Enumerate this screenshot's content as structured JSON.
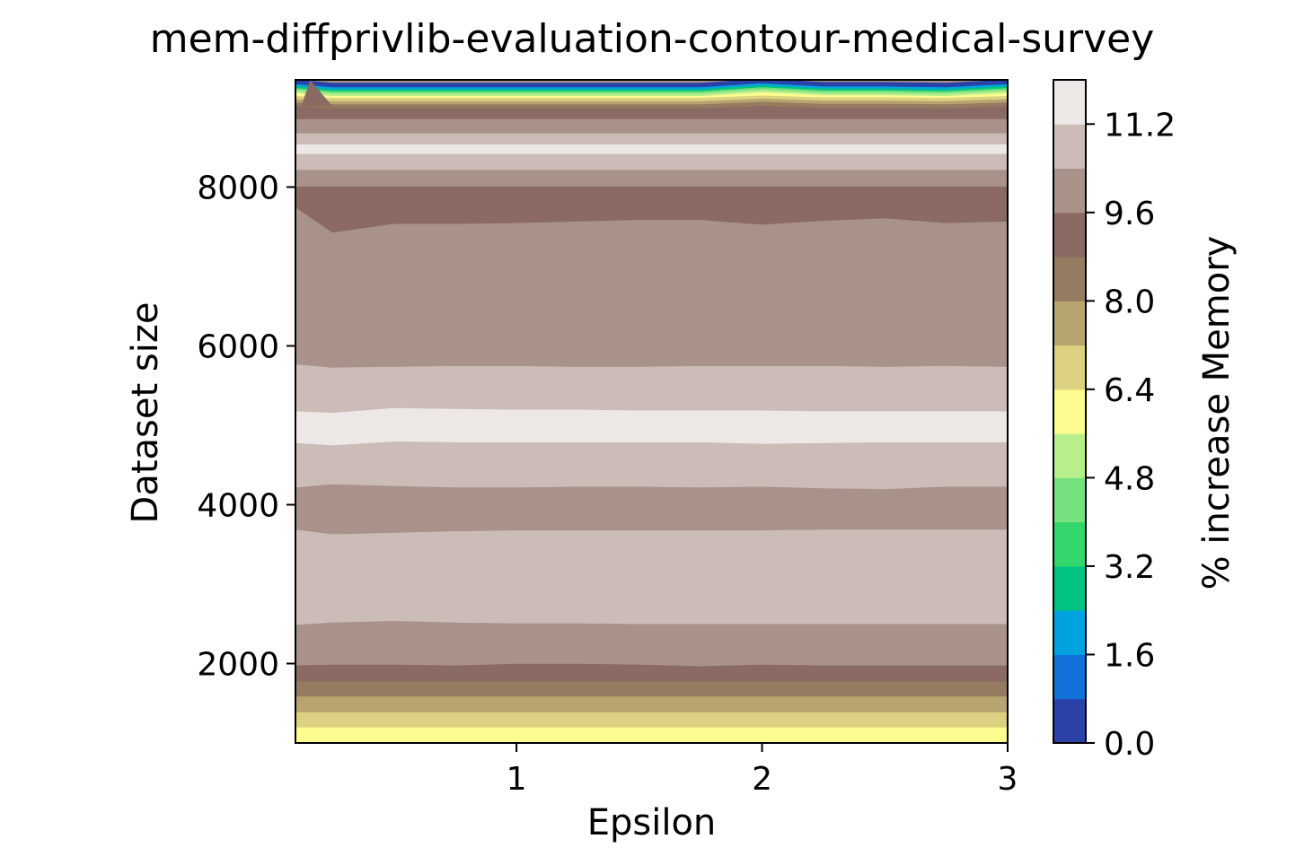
{
  "chart_data": {
    "type": "contour",
    "title": "mem-diffprivlib-evaluation-contour-medical-survey",
    "xlabel": "Epsilon",
    "ylabel": "Dataset size",
    "colorbar_label": "% increase Memory",
    "colormap": "terrain",
    "xlim": [
      0.1,
      3.0
    ],
    "ylim": [
      1000,
      9350
    ],
    "x_ticks": [
      1,
      2,
      3
    ],
    "x_tick_labels": [
      "1",
      "2",
      "3"
    ],
    "y_ticks": [
      2000,
      4000,
      6000,
      8000
    ],
    "y_tick_labels": [
      "2000",
      "4000",
      "6000",
      "8000"
    ],
    "levels": [
      0.0,
      0.8,
      1.6,
      2.4,
      3.2,
      4.0,
      4.8,
      5.6,
      6.4,
      7.2,
      8.0,
      8.8,
      9.6,
      10.4,
      11.2,
      12.0
    ],
    "colorbar_ticks": [
      0.0,
      1.6,
      3.2,
      4.8,
      6.4,
      8.0,
      9.6,
      11.2
    ],
    "colorbar_tick_labels": [
      "0.0",
      "1.6",
      "3.2",
      "4.8",
      "6.4",
      "8.0",
      "9.6",
      "11.2"
    ],
    "level_colors": [
      "#2a42a8",
      "#1272d9",
      "#00a3e0",
      "#00c381",
      "#33d66b",
      "#75e17f",
      "#b6ef8c",
      "#fcfc90",
      "#dbd180",
      "#b8a46e",
      "#957b5f",
      "#8a6a62",
      "#a89289",
      "#cbbcb8",
      "#ede8e6"
    ],
    "x": [
      0.1,
      0.25,
      0.5,
      0.75,
      1.0,
      1.25,
      1.5,
      1.75,
      2.0,
      2.25,
      2.5,
      2.75,
      3.0
    ],
    "bands_by_level": [
      {
        "level_range": [
          11.2,
          12.0
        ],
        "y_from": [
          4780,
          4750,
          4800,
          4790,
          4790,
          4790,
          4790,
          4790,
          4770,
          4780,
          4790,
          4790,
          4790
        ],
        "y_to": [
          5180,
          5160,
          5220,
          5210,
          5200,
          5200,
          5190,
          5190,
          5190,
          5180,
          5180,
          5180,
          5180
        ]
      },
      {
        "level_range": [
          11.2,
          12.0
        ],
        "y_from": [
          8420,
          8420,
          8420,
          8420,
          8420,
          8420,
          8420,
          8420,
          8420,
          8420,
          8420,
          8420,
          8420
        ],
        "y_to": [
          8540,
          8540,
          8540,
          8540,
          8540,
          8540,
          8540,
          8540,
          8540,
          8540,
          8540,
          8540,
          8540
        ]
      },
      {
        "level_range": [
          8.8,
          9.6
        ],
        "y_from": [
          7750,
          7430,
          7540,
          7540,
          7550,
          7570,
          7590,
          7590,
          7530,
          7580,
          7610,
          7550,
          7570
        ],
        "y_to": [
          8010,
          8000,
          8010,
          8010,
          8010,
          8010,
          8010,
          8010,
          8030,
          8020,
          8020,
          8020,
          8020
        ]
      },
      {
        "level_range": [
          8.8,
          9.6
        ],
        "y_from": [
          1770,
          1780,
          1780,
          1780,
          1780,
          1780,
          1780,
          1780,
          1760,
          1780,
          1780,
          1780,
          1780
        ],
        "y_to": [
          1980,
          1990,
          1990,
          1980,
          2000,
          2000,
          1990,
          1970,
          1990,
          1980,
          1980,
          1980,
          1980
        ]
      },
      {
        "level_range": [
          5.6,
          6.4
        ],
        "y_from": [
          1000,
          1000,
          1000,
          1000,
          1000,
          1000,
          1000,
          1000,
          1000,
          1000,
          1000,
          1000,
          1000
        ],
        "y_to": [
          1200,
          1190,
          1190,
          1200,
          1200,
          1200,
          1200,
          1200,
          1210,
          1200,
          1200,
          1200,
          1200
        ]
      }
    ]
  }
}
